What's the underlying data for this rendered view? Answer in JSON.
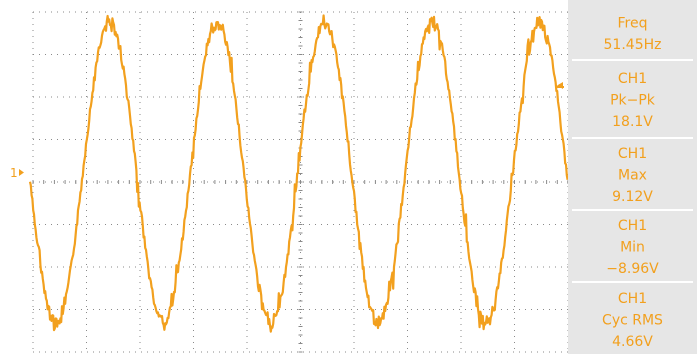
{
  "ch1_marker": "1",
  "measurements": [
    {
      "lines": [
        "Freq",
        "51.45Hz"
      ]
    },
    {
      "lines": [
        "CH1",
        "Pk−Pk",
        "18.1V"
      ]
    },
    {
      "lines": [
        "CH1",
        "Max",
        "9.12V"
      ]
    },
    {
      "lines": [
        "CH1",
        "Min",
        "−8.96V"
      ]
    },
    {
      "lines": [
        "CH1",
        "Cyc RMS",
        "4.66V"
      ]
    }
  ],
  "signal": {
    "frequency_hz": 51.45,
    "max_v": 9.12,
    "min_v": -8.96,
    "cycles_visible": 5
  },
  "colors": {
    "trace": "#f2a01e",
    "panel_bg": "#e6e6e6",
    "panel_divider": "#ffffff",
    "panel_text": "#f2a01e",
    "grid": "#8a8a8a",
    "background": "#ffffff"
  }
}
